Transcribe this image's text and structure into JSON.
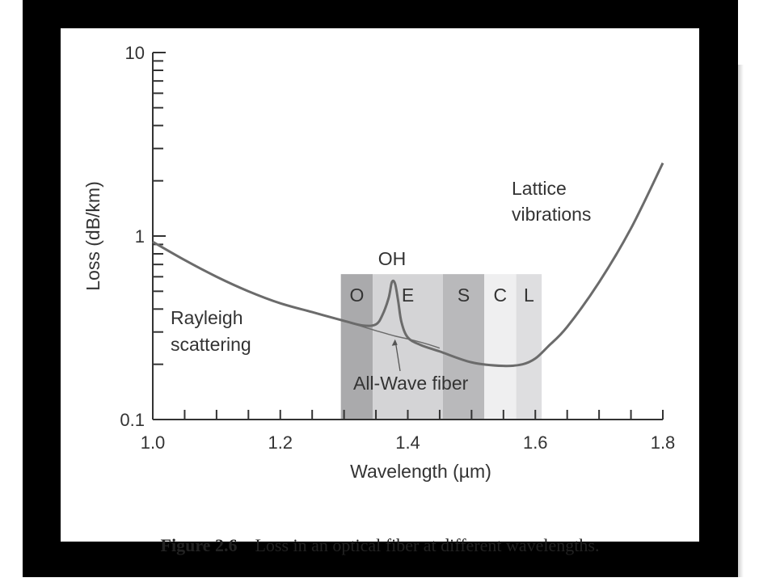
{
  "chart_data": {
    "type": "line",
    "xlabel": "Wavelength (µm)",
    "ylabel": "Loss (dB/km)",
    "xlim": [
      1.0,
      1.8
    ],
    "ylim": [
      0.1,
      10
    ],
    "y_scale": "log",
    "x_ticks": [
      "1.0",
      "1.2",
      "1.4",
      "1.6",
      "1.8"
    ],
    "y_ticks": [
      "0.1",
      "1",
      "10"
    ],
    "grid": false,
    "bands": [
      {
        "label": "O",
        "from": 1.295,
        "to": 1.345,
        "shade": "#aaaaac"
      },
      {
        "label": "E",
        "from": 1.345,
        "to": 1.455,
        "shade": "#d4d4d6"
      },
      {
        "label": "S",
        "from": 1.455,
        "to": 1.52,
        "shade": "#b9b9bb"
      },
      {
        "label": "C",
        "from": 1.52,
        "to": 1.57,
        "shade": "#efeff0"
      },
      {
        "label": "L",
        "from": 1.57,
        "to": 1.61,
        "shade": "#dedee0"
      }
    ],
    "series": [
      {
        "x": [
          1.0,
          1.05,
          1.1,
          1.15,
          1.2,
          1.25,
          1.3,
          1.33,
          1.35,
          1.36,
          1.37,
          1.375,
          1.38,
          1.385,
          1.39,
          1.4,
          1.42,
          1.45,
          1.5,
          1.55,
          1.58,
          1.6,
          1.62,
          1.65,
          1.7,
          1.75,
          1.8
        ],
        "values": [
          0.93,
          0.74,
          0.6,
          0.5,
          0.43,
          0.385,
          0.345,
          0.325,
          0.33,
          0.37,
          0.46,
          0.56,
          0.55,
          0.44,
          0.34,
          0.28,
          0.255,
          0.235,
          0.205,
          0.196,
          0.2,
          0.215,
          0.25,
          0.32,
          0.56,
          1.1,
          2.5
        ]
      },
      {
        "x": [
          1.3,
          1.33,
          1.35,
          1.38,
          1.4,
          1.43,
          1.45
        ],
        "values": [
          0.345,
          0.32,
          0.305,
          0.285,
          0.275,
          0.258,
          0.245
        ]
      }
    ],
    "annotations": [
      {
        "text": "Rayleigh scattering",
        "lines": [
          "Rayleigh",
          "scattering"
        ]
      },
      {
        "text": "Lattice vibrations",
        "lines": [
          "Lattice",
          "vibrations"
        ]
      },
      {
        "text": "OH"
      },
      {
        "text": "All-Wave fiber",
        "points_to": [
          1.38,
          0.285
        ]
      }
    ],
    "colors": {
      "curve": "#6b6b6b",
      "axis": "#333333"
    }
  },
  "caption": {
    "number": "Figure 2.6",
    "text": "Loss in an optical fiber at different wavelengths."
  }
}
